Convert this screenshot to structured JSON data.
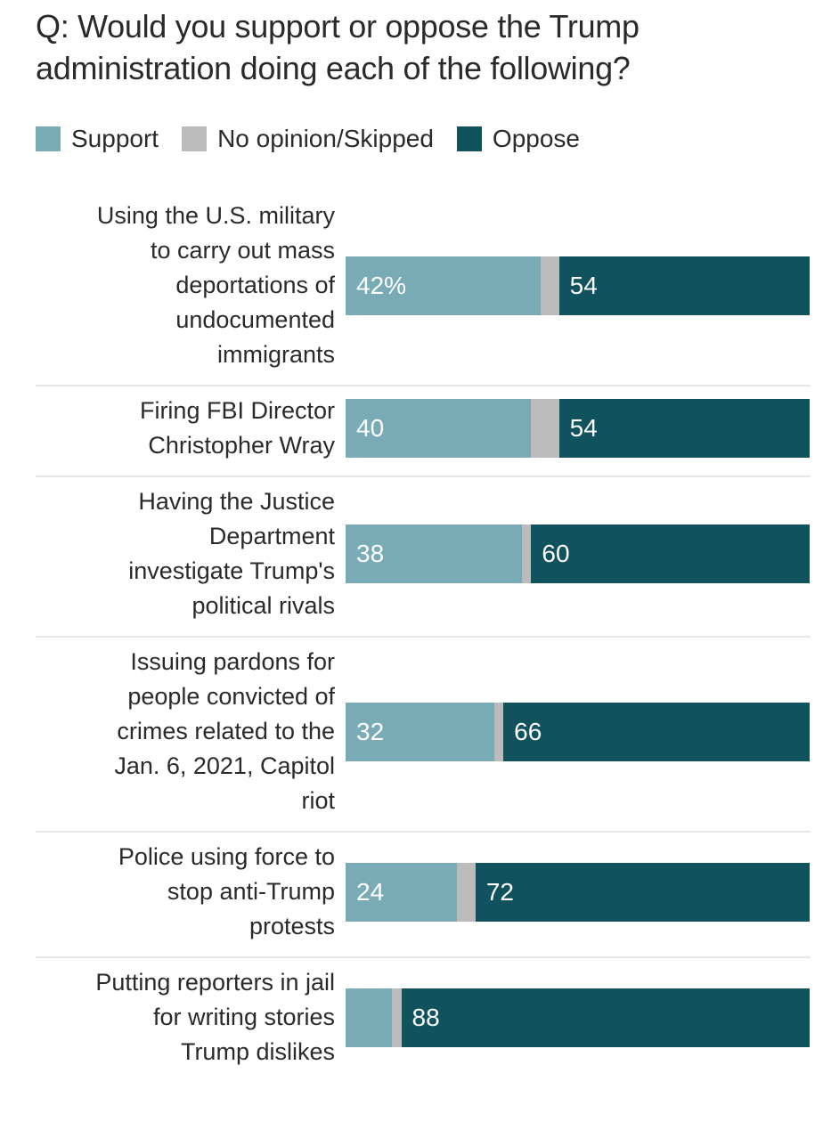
{
  "chart_data": {
    "type": "bar",
    "orientation": "horizontal-stacked",
    "title": "Q: Would you support or oppose the Trump administration doing each of the following?",
    "xlabel": "",
    "ylabel": "",
    "xlim": [
      0,
      100
    ],
    "grid": false,
    "legend_position": "top-left",
    "legend": [
      {
        "name": "Support",
        "color": "#78abb6"
      },
      {
        "name": "No opinion/Skipped",
        "color": "#bbbbbb"
      },
      {
        "name": "Oppose",
        "color": "#10535e"
      }
    ],
    "categories": [
      "Using the U.S. military to carry out mass deportations of undocumented immigrants",
      "Firing FBI Director Christopher Wray",
      "Having the Justice Department investigate Trump's political rivals",
      "Issuing pardons for people convicted of crimes related to the Jan. 6, 2021, Capitol riot",
      "Police using force to stop anti-Trump protests",
      "Putting reporters in jail for writing stories Trump dislikes"
    ],
    "series": [
      {
        "name": "Support",
        "values": [
          42,
          40,
          38,
          32,
          24,
          10
        ]
      },
      {
        "name": "No opinion/Skipped",
        "values": [
          4,
          6,
          2,
          2,
          4,
          2
        ]
      },
      {
        "name": "Oppose",
        "values": [
          54,
          54,
          60,
          66,
          72,
          88
        ]
      }
    ]
  },
  "rows": [
    {
      "label_lines": [
        "Using the U.S. military",
        "to carry out mass",
        "deportations of",
        "undocumented",
        "immigrants"
      ],
      "support_label": "42%",
      "oppose_label": "54"
    },
    {
      "label_lines": [
        "Firing FBI Director",
        "Christopher Wray"
      ],
      "support_label": "40",
      "oppose_label": "54"
    },
    {
      "label_lines": [
        "Having the Justice",
        "Department",
        "investigate Trump's",
        "political rivals"
      ],
      "support_label": "38",
      "oppose_label": "60"
    },
    {
      "label_lines": [
        "Issuing pardons for",
        "people convicted of",
        "crimes related to the",
        "Jan. 6, 2021, Capitol",
        "riot"
      ],
      "support_label": "32",
      "oppose_label": "66"
    },
    {
      "label_lines": [
        "Police using force to",
        "stop anti-Trump",
        "protests"
      ],
      "support_label": "24",
      "oppose_label": "72"
    },
    {
      "label_lines": [
        "Putting reporters in jail",
        "for writing stories",
        "Trump dislikes"
      ],
      "support_label": "",
      "oppose_label": "88"
    }
  ]
}
